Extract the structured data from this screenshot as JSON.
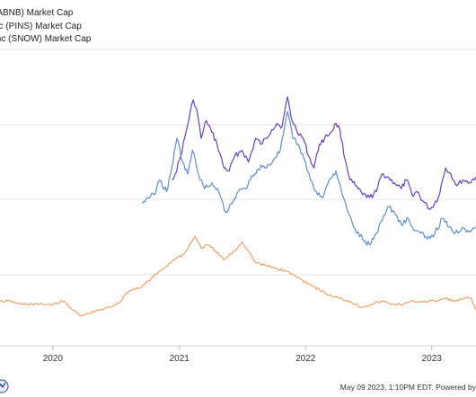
{
  "legend": [
    {
      "label": "(ABNB) Market Cap",
      "color": "#6a3fc9"
    },
    {
      "label": "nc (PINS) Market Cap",
      "color": "#f4a26a"
    },
    {
      "label": "Inc (SNOW) Market Cap",
      "color": "#5b8fd6"
    }
  ],
  "footer_text": "May 09 2023, 1:10PM EDT.  Powered by",
  "chart_data": {
    "type": "line",
    "x_ticks": [
      "2020",
      "2021",
      "2022",
      "2023"
    ],
    "xlim": [
      "2019-08",
      "2023-05-09"
    ],
    "grid": true,
    "series": [
      {
        "name": "(ABNB) Market Cap",
        "color": "#6a3fc9",
        "points": [
          [
            "2020-12-10",
            0.56
          ],
          [
            "2020-12-20",
            0.58
          ],
          [
            "2021-01-05",
            0.64
          ],
          [
            "2021-01-20",
            0.72
          ],
          [
            "2021-02-10",
            0.83
          ],
          [
            "2021-02-20",
            0.8
          ],
          [
            "2021-03-05",
            0.7
          ],
          [
            "2021-03-20",
            0.76
          ],
          [
            "2021-04-05",
            0.72
          ],
          [
            "2021-04-20",
            0.68
          ],
          [
            "2021-05-10",
            0.6
          ],
          [
            "2021-05-25",
            0.59
          ],
          [
            "2021-06-10",
            0.64
          ],
          [
            "2021-07-01",
            0.66
          ],
          [
            "2021-07-20",
            0.62
          ],
          [
            "2021-08-10",
            0.7
          ],
          [
            "2021-08-25",
            0.68
          ],
          [
            "2021-09-10",
            0.7
          ],
          [
            "2021-09-25",
            0.73
          ],
          [
            "2021-10-10",
            0.75
          ],
          [
            "2021-10-25",
            0.74
          ],
          [
            "2021-11-10",
            0.84
          ],
          [
            "2021-11-20",
            0.77
          ],
          [
            "2021-12-05",
            0.73
          ],
          [
            "2021-12-25",
            0.7
          ],
          [
            "2022-01-10",
            0.64
          ],
          [
            "2022-01-25",
            0.6
          ],
          [
            "2022-02-10",
            0.68
          ],
          [
            "2022-02-25",
            0.7
          ],
          [
            "2022-03-15",
            0.72
          ],
          [
            "2022-03-30",
            0.75
          ],
          [
            "2022-04-10",
            0.73
          ],
          [
            "2022-04-25",
            0.63
          ],
          [
            "2022-05-10",
            0.56
          ],
          [
            "2022-05-25",
            0.54
          ],
          [
            "2022-06-15",
            0.51
          ],
          [
            "2022-07-05",
            0.5
          ],
          [
            "2022-07-25",
            0.52
          ],
          [
            "2022-08-10",
            0.58
          ],
          [
            "2022-08-25",
            0.57
          ],
          [
            "2022-09-15",
            0.55
          ],
          [
            "2022-10-05",
            0.53
          ],
          [
            "2022-10-20",
            0.56
          ],
          [
            "2022-11-05",
            0.51
          ],
          [
            "2022-11-20",
            0.52
          ],
          [
            "2022-12-05",
            0.49
          ],
          [
            "2022-12-28",
            0.46
          ],
          [
            "2023-01-20",
            0.5
          ],
          [
            "2023-02-10",
            0.6
          ],
          [
            "2023-02-25",
            0.58
          ],
          [
            "2023-03-15",
            0.54
          ],
          [
            "2023-04-01",
            0.56
          ],
          [
            "2023-04-20",
            0.55
          ],
          [
            "2023-05-09",
            0.57
          ]
        ]
      },
      {
        "name": "nc (PINS) Market Cap",
        "color": "#f4a26a",
        "points": [
          [
            "2019-08-01",
            0.15
          ],
          [
            "2019-09-01",
            0.15
          ],
          [
            "2019-10-01",
            0.14
          ],
          [
            "2019-11-01",
            0.14
          ],
          [
            "2019-12-01",
            0.14
          ],
          [
            "2020-01-01",
            0.14
          ],
          [
            "2020-02-01",
            0.15
          ],
          [
            "2020-03-01",
            0.12
          ],
          [
            "2020-03-20",
            0.1
          ],
          [
            "2020-04-15",
            0.11
          ],
          [
            "2020-05-15",
            0.12
          ],
          [
            "2020-06-15",
            0.13
          ],
          [
            "2020-07-15",
            0.15
          ],
          [
            "2020-08-01",
            0.18
          ],
          [
            "2020-08-20",
            0.19
          ],
          [
            "2020-09-15",
            0.2
          ],
          [
            "2020-10-05",
            0.22
          ],
          [
            "2020-10-25",
            0.24
          ],
          [
            "2020-11-15",
            0.26
          ],
          [
            "2020-12-15",
            0.29
          ],
          [
            "2021-01-15",
            0.31
          ],
          [
            "2021-02-15",
            0.37
          ],
          [
            "2021-03-05",
            0.33
          ],
          [
            "2021-03-25",
            0.34
          ],
          [
            "2021-04-15",
            0.32
          ],
          [
            "2021-05-10",
            0.29
          ],
          [
            "2021-06-10",
            0.32
          ],
          [
            "2021-07-01",
            0.35
          ],
          [
            "2021-07-20",
            0.32
          ],
          [
            "2021-08-10",
            0.28
          ],
          [
            "2021-09-10",
            0.27
          ],
          [
            "2021-10-10",
            0.26
          ],
          [
            "2021-11-10",
            0.25
          ],
          [
            "2021-12-10",
            0.23
          ],
          [
            "2022-01-10",
            0.21
          ],
          [
            "2022-02-10",
            0.19
          ],
          [
            "2022-03-10",
            0.17
          ],
          [
            "2022-04-10",
            0.16
          ],
          [
            "2022-05-10",
            0.15
          ],
          [
            "2022-06-10",
            0.13
          ],
          [
            "2022-07-10",
            0.14
          ],
          [
            "2022-08-10",
            0.15
          ],
          [
            "2022-09-10",
            0.14
          ],
          [
            "2022-10-10",
            0.14
          ],
          [
            "2022-11-10",
            0.15
          ],
          [
            "2022-12-10",
            0.15
          ],
          [
            "2023-01-10",
            0.15
          ],
          [
            "2023-02-10",
            0.16
          ],
          [
            "2023-03-10",
            0.15
          ],
          [
            "2023-04-10",
            0.16
          ],
          [
            "2023-04-25",
            0.16
          ],
          [
            "2023-05-09",
            0.12
          ]
        ]
      },
      {
        "name": "Inc (SNOW) Market Cap",
        "color": "#5b8fd6",
        "points": [
          [
            "2020-09-16",
            0.48
          ],
          [
            "2020-10-01",
            0.5
          ],
          [
            "2020-10-20",
            0.51
          ],
          [
            "2020-11-05",
            0.56
          ],
          [
            "2020-11-25",
            0.52
          ],
          [
            "2020-12-10",
            0.6
          ],
          [
            "2020-12-25",
            0.7
          ],
          [
            "2021-01-10",
            0.62
          ],
          [
            "2021-01-25",
            0.58
          ],
          [
            "2021-02-08",
            0.66
          ],
          [
            "2021-02-25",
            0.58
          ],
          [
            "2021-03-15",
            0.53
          ],
          [
            "2021-04-05",
            0.55
          ],
          [
            "2021-04-25",
            0.52
          ],
          [
            "2021-05-15",
            0.45
          ],
          [
            "2021-06-01",
            0.48
          ],
          [
            "2021-06-20",
            0.52
          ],
          [
            "2021-07-10",
            0.53
          ],
          [
            "2021-07-25",
            0.56
          ],
          [
            "2021-08-10",
            0.58
          ],
          [
            "2021-08-25",
            0.61
          ],
          [
            "2021-09-10",
            0.6
          ],
          [
            "2021-10-01",
            0.63
          ],
          [
            "2021-10-20",
            0.66
          ],
          [
            "2021-11-10",
            0.79
          ],
          [
            "2021-11-25",
            0.7
          ],
          [
            "2021-12-10",
            0.68
          ],
          [
            "2021-12-28",
            0.63
          ],
          [
            "2022-01-15",
            0.56
          ],
          [
            "2022-02-01",
            0.52
          ],
          [
            "2022-02-20",
            0.5
          ],
          [
            "2022-03-10",
            0.56
          ],
          [
            "2022-03-30",
            0.59
          ],
          [
            "2022-04-15",
            0.52
          ],
          [
            "2022-05-01",
            0.46
          ],
          [
            "2022-05-20",
            0.4
          ],
          [
            "2022-06-15",
            0.36
          ],
          [
            "2022-07-05",
            0.34
          ],
          [
            "2022-07-25",
            0.38
          ],
          [
            "2022-08-15",
            0.44
          ],
          [
            "2022-08-30",
            0.47
          ],
          [
            "2022-09-15",
            0.45
          ],
          [
            "2022-10-05",
            0.41
          ],
          [
            "2022-10-25",
            0.43
          ],
          [
            "2022-11-10",
            0.39
          ],
          [
            "2022-11-30",
            0.38
          ],
          [
            "2022-12-20",
            0.36
          ],
          [
            "2023-01-10",
            0.38
          ],
          [
            "2023-02-01",
            0.43
          ],
          [
            "2023-02-20",
            0.4
          ],
          [
            "2023-03-10",
            0.38
          ],
          [
            "2023-03-30",
            0.4
          ],
          [
            "2023-04-15",
            0.39
          ],
          [
            "2023-05-09",
            0.4
          ]
        ]
      }
    ]
  }
}
